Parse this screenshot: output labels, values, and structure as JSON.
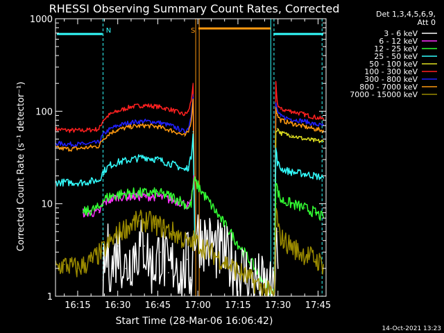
{
  "chart_data": {
    "type": "line",
    "title": "RHESSI Observing Summary Count Rates, Corrected",
    "xlabel": "Start Time (28-Mar-06 16:06:42)",
    "ylabel": "Corrected Count Rate (s⁻¹ detector⁻¹)",
    "y_scale": "log",
    "ylim": [
      1,
      1000
    ],
    "xlim_minutes_of_day": [
      966.7,
      1068
    ],
    "x_ticks": [
      {
        "label": "16:15",
        "min": 975
      },
      {
        "label": "16:30",
        "min": 990
      },
      {
        "label": "16:45",
        "min": 1005
      },
      {
        "label": "17:00",
        "min": 1020
      },
      {
        "label": "17:15",
        "min": 1035
      },
      {
        "label": "17:30",
        "min": 1050
      },
      {
        "label": "17:45",
        "min": 1065
      }
    ],
    "y_ticks": [
      {
        "label": "1",
        "v": 1
      },
      {
        "label": "10",
        "v": 10
      },
      {
        "label": "100",
        "v": 100
      },
      {
        "label": "1000",
        "v": 1000
      }
    ],
    "legend": {
      "position": "right",
      "header": [
        "Det 1,3,4,5,6,9,",
        "Att 0"
      ],
      "entries": [
        {
          "label": "3 - 6 keV",
          "color": "#ffffff"
        },
        {
          "label": "6 - 12 keV",
          "color": "#ff33ff"
        },
        {
          "label": "12 - 25 keV",
          "color": "#33ff33"
        },
        {
          "label": "25 - 50 keV",
          "color": "#33ffff"
        },
        {
          "label": "50 - 100 keV",
          "color": "#e0e020"
        },
        {
          "label": "100 - 300 keV",
          "color": "#ff2020"
        },
        {
          "label": "300 - 800 keV",
          "color": "#2020ff"
        },
        {
          "label": "800 - 7000 keV",
          "color": "#ff9910"
        },
        {
          "label": "7000 - 15000 keV",
          "color": "#9a8a00"
        }
      ]
    },
    "annotations": [
      {
        "label": "N",
        "color": "#33ffff",
        "x_min": 984.5
      },
      {
        "label": "S",
        "color": "#ff9910",
        "x_min": 1020.5
      }
    ],
    "series": [
      {
        "name": "100 - 300 keV",
        "color": "#ff2020",
        "x": [
          966.7,
          972,
          977,
          983,
          984.5,
          987,
          990,
          995,
          1000,
          1005,
          1010,
          1013,
          1015,
          1016.5,
          1017.5,
          1018.2,
          1019.2,
          1048.7,
          1049.2,
          1049.8,
          1051,
          1055,
          1060,
          1064,
          1067
        ],
        "y": [
          64,
          62,
          62,
          64,
          80,
          92,
          100,
          112,
          116,
          112,
          104,
          96,
          92,
          100,
          130,
          200,
          1,
          1,
          200,
          120,
          105,
          100,
          92,
          86,
          82
        ]
      },
      {
        "name": "300 - 800 keV",
        "color": "#2020ff",
        "x": [
          966.7,
          972,
          977,
          983,
          984.5,
          987,
          990,
          995,
          1000,
          1005,
          1010,
          1013,
          1015,
          1016.5,
          1017.5,
          1018.2,
          1019.2,
          1048.7,
          1049.2,
          1049.8,
          1051,
          1055,
          1060,
          1064,
          1067
        ],
        "y": [
          45,
          44,
          44,
          46,
          56,
          64,
          70,
          76,
          78,
          76,
          70,
          64,
          60,
          66,
          90,
          150,
          1,
          1,
          120,
          100,
          88,
          82,
          78,
          72,
          70
        ]
      },
      {
        "name": "800 - 7000 keV",
        "color": "#ff9910",
        "x": [
          966.7,
          972,
          977,
          983,
          984.5,
          987,
          990,
          995,
          1000,
          1005,
          1010,
          1013,
          1015,
          1016.5,
          1017.5,
          1018.2,
          1019.2,
          1048.7,
          1049.2,
          1049.8,
          1051,
          1055,
          1060,
          1064,
          1067
        ],
        "y": [
          40,
          39,
          40,
          42,
          50,
          58,
          63,
          68,
          70,
          68,
          62,
          58,
          54,
          60,
          80,
          130,
          1,
          1,
          110,
          90,
          80,
          74,
          68,
          64,
          62
        ]
      },
      {
        "name": "50 - 100 keV",
        "color": "#e0e020",
        "x": [
          1048.7,
          1049.2,
          1049.8,
          1051,
          1055,
          1060,
          1064,
          1067
        ],
        "y": [
          1,
          60,
          65,
          58,
          55,
          50,
          48,
          47
        ]
      },
      {
        "name": "25 - 50 keV",
        "color": "#33ffff",
        "x": [
          966.7,
          972,
          977,
          983,
          984.5,
          987,
          990,
          995,
          1000,
          1005,
          1010,
          1013,
          1015,
          1016.5,
          1017.5,
          1018.2,
          1019.2,
          1048.7,
          1049.2,
          1049.8,
          1051,
          1055,
          1060,
          1064,
          1067
        ],
        "y": [
          17,
          17,
          17,
          18,
          22,
          26,
          28,
          30,
          32,
          30,
          27,
          25,
          23,
          25,
          32,
          60,
          1,
          1,
          40,
          28,
          24,
          22,
          21,
          20,
          19
        ]
      },
      {
        "name": "6 - 12 keV",
        "color": "#ff33ff",
        "x": [
          977,
          980,
          983,
          984.5,
          987,
          990,
          995,
          1000,
          1005,
          1010,
          1013,
          1015,
          1016.5,
          1017.5,
          1018.5
        ],
        "y": [
          8,
          8,
          8,
          10,
          11,
          12,
          12,
          12,
          12,
          11,
          10.5,
          10,
          9.5,
          10,
          20
        ]
      },
      {
        "name": "12 - 25 keV",
        "color": "#33ff33",
        "x": [
          977,
          980,
          983,
          984.5,
          987,
          990,
          995,
          1000,
          1005,
          1010,
          1013,
          1015,
          1016.5,
          1017.5,
          1018.5,
          1048.7,
          1049.2,
          1049.8,
          1051,
          1055,
          1060,
          1064,
          1067
        ],
        "y": [
          8,
          8.5,
          9,
          11,
          12,
          12.5,
          13,
          13,
          13,
          12,
          11,
          10,
          9,
          10,
          18,
          1,
          18,
          14,
          11,
          10,
          9,
          8,
          7
        ]
      },
      {
        "name": "3 - 6 keV",
        "color": "#ffffff",
        "x": [
          984.5,
          986,
          988,
          990,
          993,
          996,
          1000,
          1003,
          1006,
          1009,
          1012,
          1014,
          1016,
          1017.5,
          1018.5,
          1048.7,
          1049.2,
          1050
        ],
        "y": [
          1.5,
          3,
          2,
          3.5,
          2,
          3,
          3.5,
          2,
          3,
          1.8,
          2.5,
          1.5,
          2.5,
          1.5,
          5,
          1,
          4,
          2
        ]
      },
      {
        "name": "7000 - 15000 keV",
        "color": "#9a8a00",
        "x": [
          966.7,
          970,
          975,
          980,
          984,
          986,
          988,
          991,
          995,
          998,
          1001,
          1004,
          1007,
          1010,
          1013,
          1015,
          1017,
          1018.5,
          1048.7,
          1049.3,
          1050,
          1052,
          1055,
          1058,
          1061,
          1064,
          1067
        ],
        "y": [
          2,
          2.2,
          2,
          2.4,
          3,
          3.5,
          4,
          5,
          6,
          6.5,
          6.5,
          6,
          5.5,
          5,
          4.5,
          4,
          3.5,
          4,
          1,
          10,
          5,
          4,
          3.5,
          3,
          2.8,
          2.5,
          2.2
        ]
      }
    ]
  }
}
